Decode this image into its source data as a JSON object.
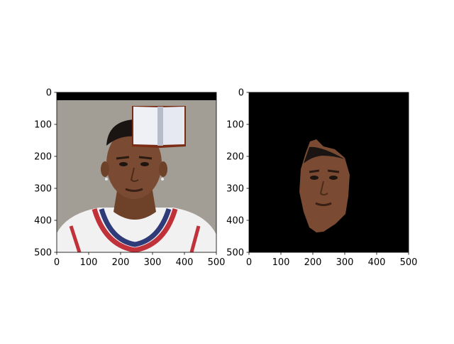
{
  "chart_data": [
    {
      "type": "image",
      "title": "",
      "xlabel": "",
      "ylabel": "",
      "xlim": [
        0,
        500
      ],
      "ylim": [
        500,
        0
      ],
      "xticks": [
        0,
        100,
        200,
        300,
        400,
        500
      ],
      "yticks": [
        0,
        100,
        200,
        300,
        400,
        500
      ],
      "y_inverted": true,
      "grid": false,
      "content": "color photo of a basketball player (head and shoulders, white jersey with red and navy trim) on a gray background, black band along the top edge, pasted open-book graphic near the top right"
    },
    {
      "type": "image",
      "title": "",
      "xlabel": "",
      "ylabel": "",
      "xlim": [
        0,
        500
      ],
      "ylim": [
        500,
        0
      ],
      "xticks": [
        0,
        100,
        200,
        300,
        400,
        500
      ],
      "yticks": [
        0,
        100,
        200,
        300,
        400,
        500
      ],
      "y_inverted": true,
      "grid": false,
      "content": "same photo masked to the face region only, everything else black"
    }
  ],
  "colors": {
    "background": "#000000",
    "photo_backdrop": "#a29e96",
    "skin": "#7a4b32",
    "jersey": "#f2f2f2",
    "jersey_red": "#c0313a",
    "jersey_navy": "#2f3a78"
  }
}
